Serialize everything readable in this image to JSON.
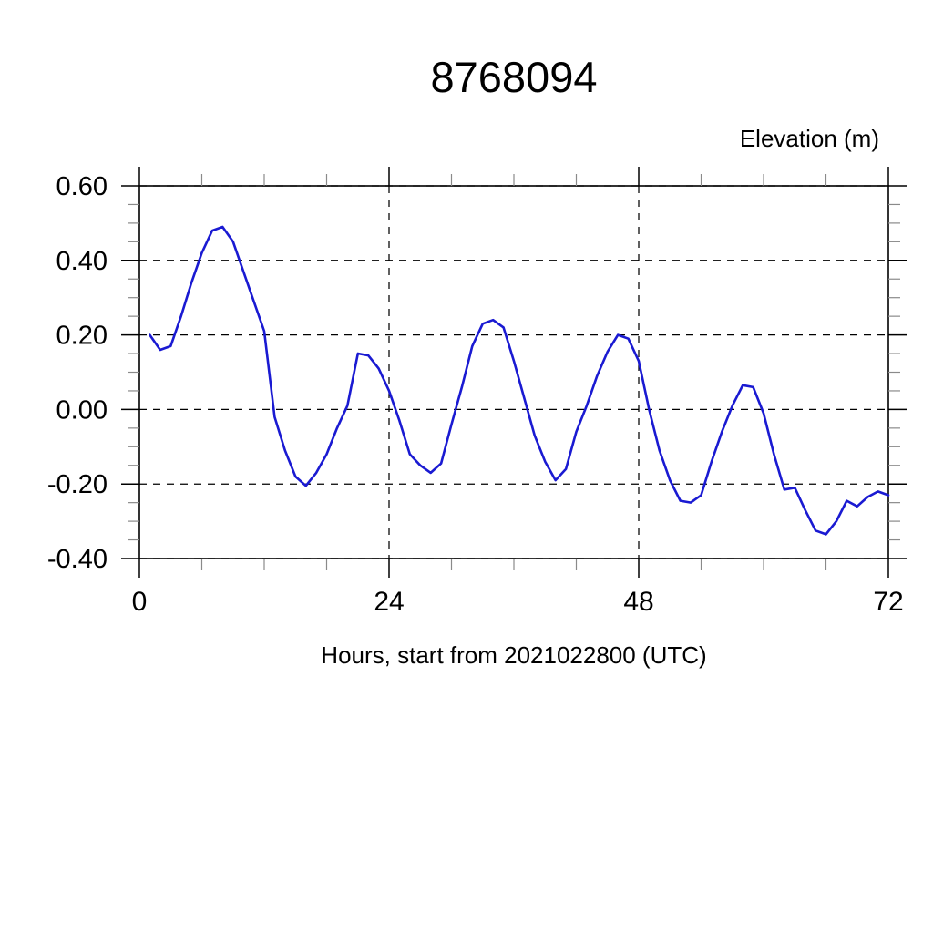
{
  "page": {
    "title": "8768094",
    "y_axis_header": "Elevation (m)",
    "x_axis_title": "Hours, start from 2021022800 (UTC)"
  },
  "chart_data": {
    "type": "line",
    "title": "8768094",
    "ylabel": "Elevation (m)",
    "xlabel": "Hours, start from 2021022800 (UTC)",
    "xlim": [
      0,
      72
    ],
    "ylim": [
      -0.4,
      0.6
    ],
    "x_major_ticks": [
      0,
      24,
      48,
      72
    ],
    "x_tick_labels": [
      "0",
      "24",
      "48",
      "72"
    ],
    "x_minor_tick_step": 6,
    "y_major_ticks": [
      0.6,
      0.4,
      0.2,
      0.0,
      -0.2,
      -0.4
    ],
    "y_tick_labels": [
      "0.60",
      "0.40",
      "0.20",
      "0.00",
      "-0.20",
      "-0.40"
    ],
    "y_minor_tick_step": 0.05,
    "grid": "dashed horizontal lines at every 0.20 m; dashed vertical lines at 24 and 48 h",
    "legend": "none",
    "line_color": "#1a1ad2",
    "series": [
      {
        "name": "elevation",
        "x": [
          1,
          2,
          3,
          4,
          5,
          6,
          7,
          8,
          9,
          10,
          11,
          12,
          13,
          14,
          15,
          16,
          17,
          18,
          19,
          20,
          21,
          22,
          23,
          24,
          25,
          26,
          27,
          28,
          29,
          30,
          31,
          32,
          33,
          34,
          35,
          36,
          37,
          38,
          39,
          40,
          41,
          42,
          43,
          44,
          45,
          46,
          47,
          48,
          49,
          50,
          51,
          52,
          53,
          54,
          55,
          56,
          57,
          58,
          59,
          60,
          61,
          62,
          63,
          64,
          65,
          66,
          67,
          68,
          69,
          70,
          71,
          72
        ],
        "y": [
          0.2,
          0.16,
          0.17,
          0.25,
          0.34,
          0.42,
          0.48,
          0.49,
          0.45,
          0.37,
          0.29,
          0.21,
          -0.02,
          -0.11,
          -0.18,
          -0.205,
          -0.17,
          -0.12,
          -0.05,
          0.01,
          0.15,
          0.145,
          0.11,
          0.05,
          -0.03,
          -0.12,
          -0.15,
          -0.17,
          -0.145,
          -0.04,
          0.06,
          0.17,
          0.23,
          0.24,
          0.22,
          0.13,
          0.03,
          -0.07,
          -0.14,
          -0.19,
          -0.16,
          -0.06,
          0.01,
          0.09,
          0.155,
          0.2,
          0.19,
          0.13,
          0.0,
          -0.11,
          -0.19,
          -0.245,
          -0.25,
          -0.23,
          -0.14,
          -0.06,
          0.01,
          0.065,
          0.06,
          -0.01,
          -0.12,
          -0.215,
          -0.21,
          -0.27,
          -0.325,
          -0.335,
          -0.3,
          -0.245,
          -0.26,
          -0.235,
          -0.22,
          -0.23
        ]
      }
    ]
  }
}
